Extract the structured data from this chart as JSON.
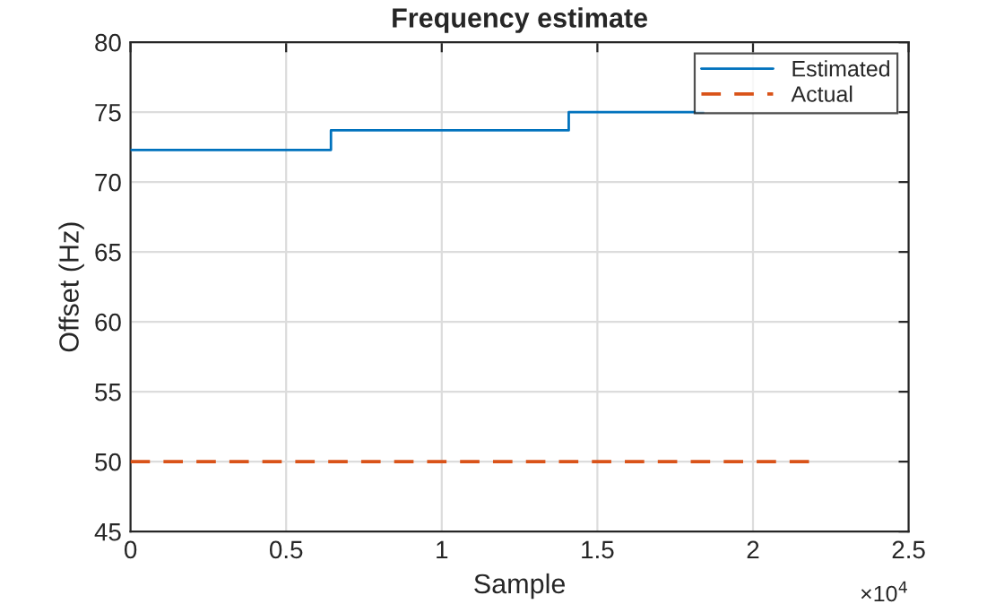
{
  "chart_data": {
    "type": "line",
    "title": "Frequency estimate",
    "xlabel": "Sample",
    "ylabel": "Offset (Hz)",
    "series": [
      {
        "name": "Estimated",
        "type": "step",
        "color": "#0072bd",
        "line_style": "solid",
        "x": [
          0,
          0.644,
          1.408,
          1.84
        ],
        "values": [
          72.3,
          73.7,
          75.0,
          75.0
        ]
      },
      {
        "name": "Actual",
        "color": "#d95319",
        "line_style": "dashed",
        "x": [
          0,
          2.18
        ],
        "values": [
          50,
          50
        ]
      }
    ],
    "xlim": [
      0,
      2.5
    ],
    "xticks": [
      0,
      0.5,
      1,
      1.5,
      2,
      2.5
    ],
    "ylim": [
      45,
      80
    ],
    "yticks": [
      45,
      50,
      55,
      60,
      65,
      70,
      75,
      80
    ],
    "annotations": [
      "×10$^{4}$"
    ],
    "grid": true,
    "legend": "top right"
  }
}
